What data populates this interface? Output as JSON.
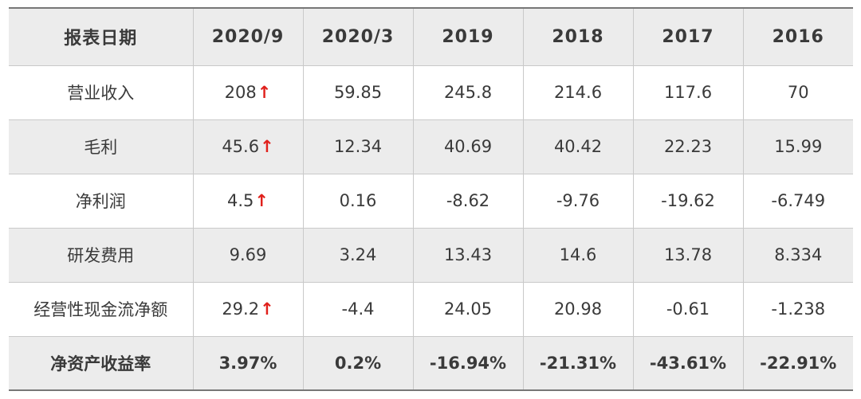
{
  "table": {
    "headers": [
      "报表日期",
      "2020/9",
      "2020/3",
      "2019",
      "2018",
      "2017",
      "2016"
    ],
    "rows": [
      {
        "label": "营业收入",
        "values": [
          "208",
          "59.85",
          "245.8",
          "214.6",
          "117.6",
          "70"
        ],
        "arrow": "↑"
      },
      {
        "label": "毛利",
        "values": [
          "45.6",
          "12.34",
          "40.69",
          "40.42",
          "22.23",
          "15.99"
        ],
        "arrow": "↑"
      },
      {
        "label": "净利润",
        "values": [
          "4.5",
          "0.16",
          "-8.62",
          "-9.76",
          "-19.62",
          "-6.749"
        ],
        "arrow": "↑"
      },
      {
        "label": "研发费用",
        "values": [
          "9.69",
          "3.24",
          "13.43",
          "14.6",
          "13.78",
          "8.334"
        ],
        "arrow": ""
      },
      {
        "label": "经营性现金流净额",
        "values": [
          "29.2",
          "-4.4",
          "24.05",
          "20.98",
          "-0.61",
          "-1.238"
        ],
        "arrow": "↑"
      },
      {
        "label": "净资产收益率",
        "values": [
          "3.97%",
          "0.2%",
          "-16.94%",
          "-21.31%",
          "-43.61%",
          "-22.91%"
        ],
        "arrow": ""
      }
    ]
  },
  "colors": {
    "header_bg": "#ececec",
    "shaded_row_bg": "#ececec",
    "arrow_up": "#e0201b",
    "text": "#3a3a3a"
  }
}
